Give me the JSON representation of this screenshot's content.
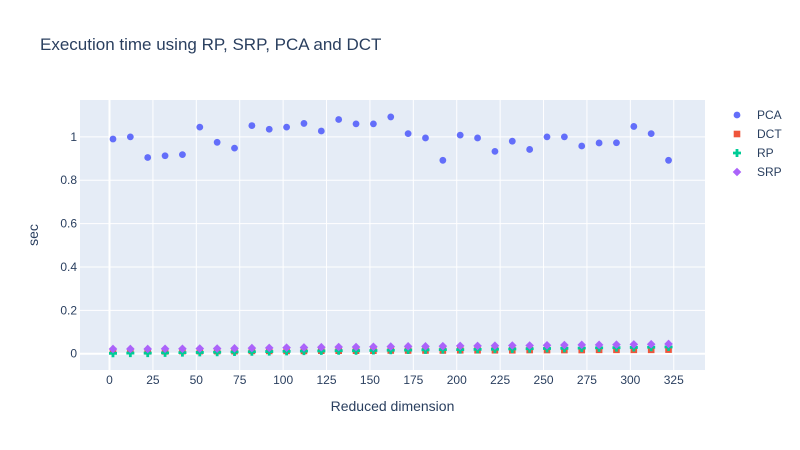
{
  "chart_data": {
    "type": "scatter",
    "title": "Execution time using RP, SRP, PCA and DCT",
    "xlabel": "Reduced dimension",
    "ylabel": "sec",
    "xlim": [
      -17,
      343
    ],
    "ylim": [
      -0.075,
      1.17
    ],
    "xticks": [
      0,
      25,
      50,
      75,
      100,
      125,
      150,
      175,
      200,
      225,
      250,
      275,
      300,
      325
    ],
    "yticks": [
      0,
      0.2,
      0.4,
      0.6,
      0.8,
      1
    ],
    "ytick_labels": [
      "0",
      "0.2",
      "0.4",
      "0.6",
      "0.8",
      "1"
    ],
    "grid": true,
    "legend_position": "top-right",
    "x": [
      2,
      12,
      22,
      32,
      42,
      52,
      62,
      72,
      82,
      92,
      102,
      112,
      122,
      132,
      142,
      152,
      162,
      172,
      182,
      192,
      202,
      212,
      222,
      232,
      242,
      252,
      262,
      272,
      282,
      292,
      302,
      312,
      322
    ],
    "series": [
      {
        "name": "PCA",
        "color": "#636efa",
        "marker": "circle",
        "values": [
          0.99,
          1.0,
          0.905,
          0.913,
          0.918,
          1.045,
          0.975,
          0.948,
          1.052,
          1.035,
          1.045,
          1.062,
          1.027,
          1.08,
          1.06,
          1.06,
          1.092,
          1.015,
          0.995,
          0.892,
          1.008,
          0.995,
          0.933,
          0.98,
          0.942,
          1.0,
          1.0,
          0.958,
          0.972,
          0.973,
          1.048,
          1.015,
          0.892
        ]
      },
      {
        "name": "DCT",
        "color": "#ef553b",
        "marker": "square",
        "values": [
          0.012,
          0.012,
          0.011,
          0.011,
          0.012,
          0.012,
          0.012,
          0.012,
          0.013,
          0.013,
          0.013,
          0.013,
          0.014,
          0.014,
          0.014,
          0.014,
          0.015,
          0.015,
          0.015,
          0.015,
          0.016,
          0.016,
          0.016,
          0.016,
          0.017,
          0.017,
          0.017,
          0.017,
          0.018,
          0.018,
          0.018,
          0.018,
          0.019
        ]
      },
      {
        "name": "RP",
        "color": "#00cc96",
        "marker": "cross",
        "values": [
          0.002,
          0.003,
          0.003,
          0.004,
          0.005,
          0.006,
          0.007,
          0.008,
          0.009,
          0.01,
          0.011,
          0.012,
          0.013,
          0.014,
          0.014,
          0.015,
          0.016,
          0.017,
          0.018,
          0.019,
          0.019,
          0.02,
          0.021,
          0.022,
          0.023,
          0.024,
          0.025,
          0.026,
          0.027,
          0.028,
          0.029,
          0.03,
          0.031
        ]
      },
      {
        "name": "SRP",
        "color": "#ab63fa",
        "marker": "diamond",
        "values": [
          0.022,
          0.022,
          0.022,
          0.023,
          0.023,
          0.024,
          0.024,
          0.025,
          0.026,
          0.027,
          0.028,
          0.029,
          0.03,
          0.031,
          0.031,
          0.032,
          0.033,
          0.034,
          0.034,
          0.035,
          0.036,
          0.036,
          0.037,
          0.038,
          0.038,
          0.039,
          0.04,
          0.041,
          0.041,
          0.042,
          0.043,
          0.044,
          0.045
        ]
      }
    ]
  }
}
